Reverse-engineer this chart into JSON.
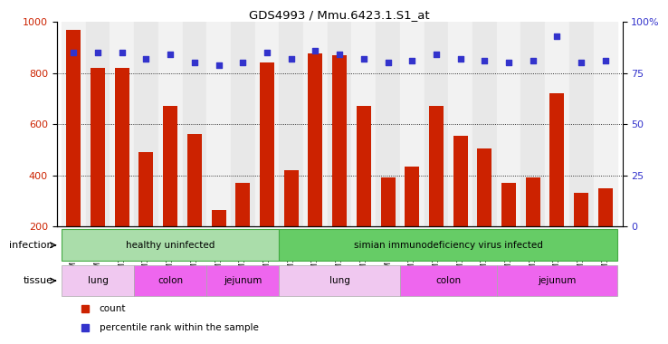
{
  "title": "GDS4993 / Mmu.6423.1.S1_at",
  "samples": [
    "GSM1249391",
    "GSM1249392",
    "GSM1249393",
    "GSM1249369",
    "GSM1249370",
    "GSM1249371",
    "GSM1249380",
    "GSM1249381",
    "GSM1249382",
    "GSM1249386",
    "GSM1249387",
    "GSM1249388",
    "GSM1249389",
    "GSM1249390",
    "GSM1249365",
    "GSM1249366",
    "GSM1249367",
    "GSM1249368",
    "GSM1249375",
    "GSM1249376",
    "GSM1249377",
    "GSM1249378",
    "GSM1249379"
  ],
  "counts": [
    970,
    820,
    820,
    490,
    670,
    560,
    265,
    370,
    840,
    420,
    875,
    870,
    670,
    390,
    435,
    670,
    555,
    505,
    370,
    390,
    720,
    330,
    350
  ],
  "percentiles": [
    85,
    85,
    85,
    82,
    84,
    80,
    79,
    80,
    85,
    82,
    86,
    84,
    82,
    80,
    81,
    84,
    82,
    81,
    80,
    81,
    93,
    80,
    81
  ],
  "bar_color": "#cc2200",
  "dot_color": "#3333cc",
  "ylim_left": [
    200,
    1000
  ],
  "ylim_right": [
    0,
    100
  ],
  "yticks_left": [
    200,
    400,
    600,
    800,
    1000
  ],
  "yticks_right": [
    0,
    25,
    50,
    75,
    100
  ],
  "grid_lines": [
    400,
    600,
    800
  ],
  "infection_groups": [
    {
      "label": "healthy uninfected",
      "start": 0,
      "end": 9,
      "color": "#aaddaa"
    },
    {
      "label": "simian immunodeficiency virus infected",
      "start": 9,
      "end": 23,
      "color": "#66cc66"
    }
  ],
  "tissue_groups": [
    {
      "label": "lung",
      "start": 0,
      "end": 3,
      "color": "#f0c8f0"
    },
    {
      "label": "colon",
      "start": 3,
      "end": 6,
      "color": "#ee66ee"
    },
    {
      "label": "jejunum",
      "start": 6,
      "end": 9,
      "color": "#ee66ee"
    },
    {
      "label": "lung",
      "start": 9,
      "end": 14,
      "color": "#f0c8f0"
    },
    {
      "label": "colon",
      "start": 14,
      "end": 18,
      "color": "#ee66ee"
    },
    {
      "label": "jejunum",
      "start": 18,
      "end": 23,
      "color": "#ee66ee"
    }
  ],
  "infection_label": "infection",
  "tissue_label": "tissue",
  "legend_count": "count",
  "legend_percentile": "percentile rank within the sample",
  "col_bg_even": "#f2f2f2",
  "col_bg_odd": "#e8e8e8"
}
